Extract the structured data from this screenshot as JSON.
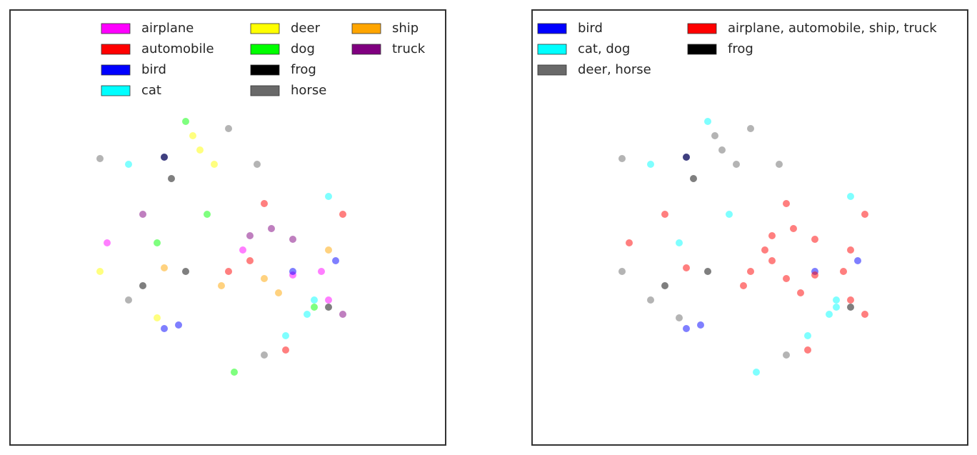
{
  "chart_data": [
    {
      "type": "scatter",
      "xlim": [
        0,
        610
      ],
      "ylim": [
        0,
        609
      ],
      "legend_columns": 3,
      "series": [
        {
          "name": "airplane",
          "color": "#ff00ff",
          "x": [
            436,
            446,
            326,
            136,
            396
          ],
          "y": [
            243,
            203,
            273,
            283,
            238
          ]
        },
        {
          "name": "automobile",
          "color": "#ff0000",
          "x": [
            306,
            356,
            466,
            386,
            336
          ],
          "y": [
            243,
            338,
            323,
            133,
            258
          ]
        },
        {
          "name": "bird",
          "color": "#0000ff",
          "x": [
            236,
            396,
            456,
            216,
            216
          ],
          "y": [
            168,
            243,
            258,
            403,
            163
          ]
        },
        {
          "name": "cat",
          "color": "#00ffff",
          "x": [
            416,
            166,
            386,
            446,
            426
          ],
          "y": [
            183,
            393,
            153,
            348,
            203
          ]
        },
        {
          "name": "deer",
          "color": "#ffff00",
          "x": [
            256,
            266,
            126,
            206,
            286
          ],
          "y": [
            433,
            413,
            243,
            178,
            393
          ]
        },
        {
          "name": "dog",
          "color": "#00ff00",
          "x": [
            206,
            276,
            246,
            314,
            426
          ],
          "y": [
            283,
            323,
            453,
            102,
            193
          ]
        },
        {
          "name": "frog",
          "color": "#000000",
          "x": [
            226,
            216,
            446,
            246,
            186
          ],
          "y": [
            373,
            403,
            193,
            243,
            223
          ]
        },
        {
          "name": "horse",
          "color": "#696969",
          "x": [
            306,
            126,
            166,
            346,
            356
          ],
          "y": [
            443,
            401,
            203,
            393,
            126
          ]
        },
        {
          "name": "ship",
          "color": "#ffa500",
          "x": [
            296,
            356,
            446,
            216,
            376
          ],
          "y": [
            223,
            233,
            273,
            248,
            213
          ]
        },
        {
          "name": "truck",
          "color": "#800080",
          "x": [
            366,
            336,
            466,
            186,
            396
          ],
          "y": [
            303,
            293,
            183,
            323,
            288
          ]
        }
      ]
    },
    {
      "type": "scatter",
      "xlim": [
        0,
        610
      ],
      "ylim": [
        0,
        609
      ],
      "legend_columns": 2,
      "series": [
        {
          "name": "bird",
          "color": "#0000ff",
          "x": [
            236,
            396,
            456,
            216,
            216
          ],
          "y": [
            168,
            243,
            258,
            403,
            163
          ]
        },
        {
          "name": "cat, dog",
          "color": "#00ffff",
          "x": [
            416,
            166,
            386,
            446,
            426,
            206,
            276,
            246,
            314,
            426
          ],
          "y": [
            183,
            393,
            153,
            348,
            203,
            283,
            323,
            453,
            102,
            193
          ]
        },
        {
          "name": "deer, horse",
          "color": "#696969",
          "x": [
            256,
            266,
            126,
            206,
            286,
            306,
            126,
            166,
            346,
            356
          ],
          "y": [
            433,
            413,
            243,
            178,
            393,
            443,
            401,
            203,
            393,
            126
          ]
        },
        {
          "name": "airplane, automobile, ship, truck",
          "color": "#ff0000",
          "x": [
            436,
            446,
            326,
            136,
            396,
            306,
            356,
            466,
            386,
            336,
            296,
            356,
            446,
            216,
            376,
            366,
            336,
            466,
            186,
            396
          ],
          "y": [
            243,
            203,
            273,
            283,
            238,
            243,
            338,
            323,
            133,
            258,
            223,
            233,
            273,
            248,
            213,
            303,
            293,
            183,
            323,
            288
          ]
        },
        {
          "name": "frog",
          "color": "#000000",
          "x": [
            226,
            216,
            446,
            246,
            186
          ],
          "y": [
            373,
            403,
            193,
            243,
            223
          ]
        }
      ]
    }
  ]
}
